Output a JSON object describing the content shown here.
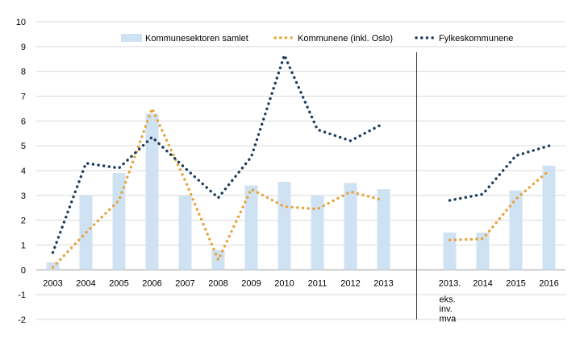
{
  "chart_data": {
    "type": "bar",
    "categories": [
      "2003",
      "2004",
      "2005",
      "2006",
      "2007",
      "2008",
      "2009",
      "2010",
      "2011",
      "2012",
      "2013",
      "2013.",
      "2014",
      "2015",
      "2016"
    ],
    "category_note": {
      "category": "2013.",
      "lines": [
        "eks.",
        "inv.",
        "mva"
      ]
    },
    "ylim": [
      -2,
      10
    ],
    "yticks": [
      "-2",
      "-1",
      "0",
      "1",
      "2",
      "3",
      "4",
      "5",
      "6",
      "7",
      "8",
      "9",
      "10"
    ],
    "grid": true,
    "legend_position": "top",
    "series": [
      {
        "name": "Kommunesektoren samlet",
        "kind": "bar",
        "color": "#cfe2f3",
        "values": [
          0.3,
          3.0,
          3.9,
          6.3,
          3.0,
          0.8,
          3.4,
          3.55,
          3.0,
          3.5,
          3.25,
          1.5,
          1.5,
          3.2,
          4.2
        ]
      },
      {
        "name": "Kommunene (inkl. Oslo)",
        "kind": "line",
        "style": "dotted",
        "color": "#e8a33c",
        "segments": [
          [
            0.1,
            1.5,
            2.8,
            6.5,
            3.6,
            0.4,
            3.25,
            2.55,
            2.45,
            3.15,
            2.8,
            null,
            null,
            null,
            null
          ],
          [
            null,
            null,
            null,
            null,
            null,
            null,
            null,
            null,
            null,
            null,
            null,
            1.2,
            1.25,
            2.85,
            4.0
          ]
        ]
      },
      {
        "name": "Fylkeskommunene",
        "kind": "line",
        "style": "dotted",
        "color": "#1b3a5c",
        "segments": [
          [
            0.7,
            4.3,
            4.1,
            5.35,
            4.1,
            2.9,
            4.55,
            8.65,
            5.65,
            5.2,
            5.9,
            null,
            null,
            null,
            null
          ],
          [
            null,
            null,
            null,
            null,
            null,
            null,
            null,
            null,
            null,
            null,
            null,
            2.8,
            3.05,
            4.6,
            5.0
          ]
        ]
      }
    ]
  }
}
